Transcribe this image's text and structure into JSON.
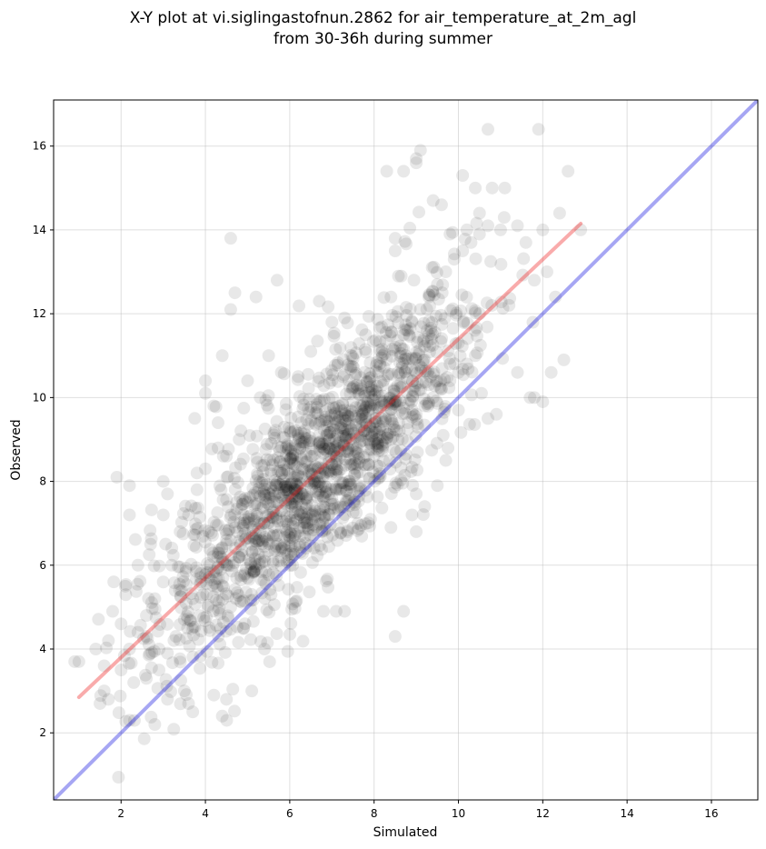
{
  "chart_data": {
    "type": "scatter",
    "title": [
      "X-Y plot at vi.siglingastofnun.2862 for air_temperature_at_2m_agl",
      "from 30-36h during summer"
    ],
    "xlabel": "Simulated",
    "ylabel": "Observed",
    "xlim": [
      0.4,
      17.1
    ],
    "ylim": [
      0.4,
      17.1
    ],
    "xticks": [
      2,
      4,
      6,
      8,
      10,
      12,
      14,
      16
    ],
    "yticks": [
      2,
      4,
      6,
      8,
      10,
      12,
      14,
      16
    ],
    "grid": true,
    "colors": {
      "points": "#000000",
      "identity_line": "#0000dd",
      "fit_line": "#ee2222"
    },
    "identity_line": {
      "x": [
        0.4,
        17.1
      ],
      "y": [
        0.4,
        17.1
      ]
    },
    "fit_line": {
      "x": [
        1.0,
        12.9
      ],
      "y": [
        2.85,
        14.15
      ]
    },
    "cloud": {
      "approx_point_count": 1500,
      "fit_slope": 0.95,
      "fit_intercept": 1.9,
      "residual_sd": 1.15
    },
    "points": [
      [
        0.9,
        3.7
      ],
      [
        1.0,
        3.7
      ],
      [
        1.4,
        4.0
      ],
      [
        1.5,
        2.7
      ],
      [
        1.6,
        3.0
      ],
      [
        1.7,
        2.8
      ],
      [
        1.9,
        8.1
      ],
      [
        2.0,
        3.5
      ],
      [
        2.1,
        5.5
      ],
      [
        2.2,
        7.9
      ],
      [
        2.2,
        7.2
      ],
      [
        2.2,
        2.3
      ],
      [
        2.4,
        6.0
      ],
      [
        2.6,
        4.3
      ],
      [
        2.7,
        6.5
      ],
      [
        2.8,
        2.2
      ],
      [
        2.9,
        4.0
      ],
      [
        3.0,
        8.0
      ],
      [
        3.0,
        7.2
      ],
      [
        3.1,
        7.7
      ],
      [
        3.1,
        2.8
      ],
      [
        3.5,
        3.0
      ],
      [
        3.6,
        2.7
      ],
      [
        3.7,
        2.5
      ],
      [
        3.8,
        8.2
      ],
      [
        4.0,
        10.1
      ],
      [
        4.0,
        10.4
      ],
      [
        4.2,
        9.8
      ],
      [
        4.4,
        11.0
      ],
      [
        4.3,
        9.4
      ],
      [
        4.6,
        13.8
      ],
      [
        4.7,
        12.5
      ],
      [
        4.6,
        12.1
      ],
      [
        5.2,
        12.4
      ],
      [
        5.7,
        12.8
      ],
      [
        4.2,
        2.9
      ],
      [
        4.4,
        2.4
      ],
      [
        4.5,
        2.8
      ],
      [
        5.1,
        3.0
      ],
      [
        5.4,
        4.0
      ],
      [
        4.6,
        5.0
      ],
      [
        4.9,
        4.5
      ],
      [
        6.8,
        4.9
      ],
      [
        7.1,
        4.9
      ],
      [
        7.3,
        4.9
      ],
      [
        8.5,
        4.3
      ],
      [
        8.7,
        4.9
      ],
      [
        9.0,
        6.8
      ],
      [
        8.9,
        7.2
      ],
      [
        8.4,
        6.9
      ],
      [
        8.7,
        15.4
      ],
      [
        8.3,
        15.4
      ],
      [
        9.0,
        15.7
      ],
      [
        9.1,
        15.9
      ],
      [
        9.0,
        15.6
      ],
      [
        10.7,
        16.4
      ],
      [
        11.9,
        16.4
      ],
      [
        12.6,
        15.4
      ],
      [
        12.4,
        14.4
      ],
      [
        12.9,
        14.0
      ],
      [
        10.1,
        15.3
      ],
      [
        10.4,
        15.0
      ],
      [
        10.8,
        15.0
      ],
      [
        11.1,
        15.0
      ],
      [
        10.9,
        9.6
      ],
      [
        10.7,
        9.5
      ],
      [
        11.4,
        10.6
      ],
      [
        11.7,
        10.0
      ],
      [
        12.2,
        10.6
      ],
      [
        12.0,
        9.9
      ],
      [
        12.5,
        10.9
      ],
      [
        11.8,
        10.0
      ],
      [
        10.0,
        9.7
      ],
      [
        9.7,
        8.5
      ],
      [
        9.5,
        7.9
      ],
      [
        9.2,
        7.4
      ],
      [
        9.0,
        7.7
      ],
      [
        9.3,
        11.5
      ],
      [
        8.5,
        13.8
      ],
      [
        8.5,
        13.5
      ],
      [
        9.6,
        14.6
      ],
      [
        9.4,
        14.7
      ],
      [
        9.8,
        13.9
      ],
      [
        10.2,
        14.0
      ],
      [
        10.5,
        14.4
      ],
      [
        11.0,
        14.0
      ],
      [
        11.4,
        14.1
      ],
      [
        11.6,
        13.7
      ],
      [
        12.0,
        14.0
      ],
      [
        12.3,
        12.4
      ],
      [
        12.1,
        13.0
      ],
      [
        11.8,
        12.8
      ],
      [
        11.2,
        12.2
      ],
      [
        10.5,
        12.0
      ],
      [
        10.0,
        11.3
      ],
      [
        9.8,
        10.8
      ],
      [
        9.5,
        10.4
      ],
      [
        9.2,
        10.9
      ],
      [
        8.8,
        11.6
      ],
      [
        8.4,
        12.4
      ],
      [
        8.2,
        11.0
      ],
      [
        7.8,
        11.5
      ],
      [
        7.3,
        11.9
      ],
      [
        7.0,
        11.8
      ],
      [
        6.7,
        12.3
      ],
      [
        6.5,
        11.1
      ],
      [
        6.2,
        10.5
      ],
      [
        5.8,
        10.6
      ],
      [
        5.5,
        11.0
      ],
      [
        5.3,
        10.0
      ],
      [
        5.0,
        10.4
      ],
      [
        4.8,
        9.0
      ],
      [
        4.5,
        8.6
      ],
      [
        4.3,
        8.8
      ],
      [
        4.0,
        8.3
      ],
      [
        3.8,
        7.8
      ],
      [
        3.6,
        7.2
      ],
      [
        3.4,
        6.8
      ],
      [
        3.2,
        6.0
      ],
      [
        3.0,
        5.6
      ],
      [
        2.8,
        5.2
      ],
      [
        2.6,
        4.8
      ],
      [
        2.4,
        4.4
      ],
      [
        2.2,
        4.0
      ],
      [
        2.0,
        4.6
      ],
      [
        1.8,
        4.9
      ],
      [
        1.7,
        4.2
      ],
      [
        1.6,
        3.6
      ],
      [
        2.3,
        3.2
      ],
      [
        2.6,
        3.3
      ],
      [
        2.9,
        3.5
      ],
      [
        3.1,
        3.9
      ],
      [
        3.3,
        4.3
      ],
      [
        3.5,
        4.7
      ],
      [
        3.7,
        5.2
      ],
      [
        3.9,
        5.6
      ],
      [
        4.1,
        6.0
      ],
      [
        4.3,
        6.3
      ],
      [
        4.5,
        6.6
      ],
      [
        4.7,
        6.9
      ],
      [
        4.9,
        7.2
      ],
      [
        5.1,
        6.5
      ],
      [
        5.3,
        6.8
      ],
      [
        5.5,
        7.2
      ],
      [
        5.7,
        7.5
      ],
      [
        5.9,
        7.8
      ],
      [
        6.1,
        8.1
      ],
      [
        6.3,
        8.3
      ],
      [
        6.5,
        8.6
      ],
      [
        6.7,
        8.9
      ],
      [
        6.9,
        9.1
      ],
      [
        7.1,
        9.4
      ],
      [
        7.3,
        9.7
      ],
      [
        7.5,
        9.9
      ],
      [
        7.7,
        10.2
      ],
      [
        7.9,
        10.4
      ],
      [
        8.1,
        10.6
      ],
      [
        8.3,
        10.9
      ],
      [
        8.5,
        11.2
      ],
      [
        8.7,
        11.5
      ],
      [
        8.9,
        11.8
      ],
      [
        9.1,
        12.1
      ],
      [
        9.3,
        12.4
      ],
      [
        9.5,
        12.7
      ],
      [
        9.7,
        13.0
      ],
      [
        9.9,
        13.3
      ],
      [
        10.1,
        13.5
      ],
      [
        10.3,
        13.7
      ],
      [
        10.5,
        13.9
      ],
      [
        10.7,
        14.1
      ],
      [
        5.0,
        5.7
      ],
      [
        5.2,
        5.9
      ],
      [
        5.4,
        6.2
      ],
      [
        5.6,
        6.1
      ],
      [
        5.8,
        6.4
      ],
      [
        6.0,
        6.6
      ],
      [
        6.2,
        6.8
      ],
      [
        6.4,
        7.0
      ],
      [
        6.6,
        7.2
      ],
      [
        6.8,
        7.4
      ],
      [
        7.0,
        7.6
      ],
      [
        7.2,
        7.8
      ],
      [
        7.4,
        8.0
      ],
      [
        7.6,
        8.2
      ],
      [
        7.8,
        8.4
      ],
      [
        8.0,
        8.6
      ],
      [
        8.2,
        8.8
      ],
      [
        8.4,
        9.0
      ],
      [
        8.6,
        9.2
      ],
      [
        8.8,
        9.4
      ],
      [
        9.0,
        9.6
      ],
      [
        9.2,
        9.8
      ],
      [
        9.4,
        10.0
      ],
      [
        9.6,
        10.2
      ],
      [
        9.8,
        10.4
      ],
      [
        10.0,
        10.6
      ],
      [
        10.2,
        10.8
      ],
      [
        10.4,
        11.0
      ]
    ]
  }
}
